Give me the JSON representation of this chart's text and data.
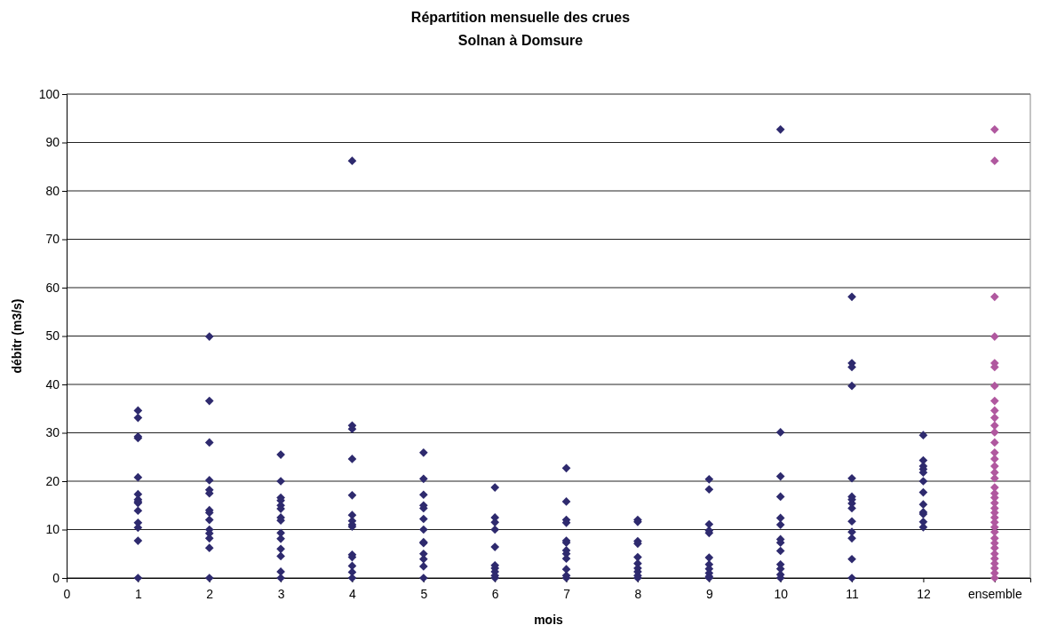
{
  "chart_data": {
    "type": "scatter",
    "title": "Répartition mensuelle des crues",
    "subtitle": "Solnan à Domsure",
    "xlabel": "mois",
    "ylabel": "débitr (m3/s)",
    "xlim": [
      0,
      13.5
    ],
    "xticks": [
      0,
      1,
      2,
      3,
      4,
      5,
      6,
      7,
      8,
      9,
      10,
      11,
      12,
      {
        "value": 13,
        "label": "ensemble"
      }
    ],
    "ylim": [
      0,
      100
    ],
    "yticks": [
      0,
      10,
      20,
      30,
      40,
      50,
      60,
      70,
      80,
      90,
      100
    ],
    "grid": "y",
    "marker": "diamond",
    "series": [
      {
        "color": "#2e2a6e",
        "x": [
          1,
          1,
          1,
          1,
          1,
          1,
          1,
          1,
          1,
          1,
          1,
          1,
          1,
          1,
          2,
          2,
          2,
          2,
          2,
          2,
          2,
          2,
          2,
          2,
          2,
          2,
          2,
          2,
          3,
          3,
          3,
          3,
          3,
          3,
          3,
          3,
          3,
          3,
          3,
          3,
          3,
          3,
          4,
          4,
          4,
          4,
          4,
          4,
          4,
          4,
          4,
          4,
          4,
          4,
          4,
          4,
          5,
          5,
          5,
          5,
          5,
          5,
          5,
          5,
          5,
          5,
          5,
          5,
          5,
          6,
          6,
          6,
          6,
          6,
          6,
          6,
          6,
          6,
          6,
          7,
          7,
          7,
          7,
          7,
          7,
          7,
          7,
          7,
          7,
          7,
          7,
          8,
          8,
          8,
          8,
          8,
          8,
          8,
          8,
          8,
          8,
          9,
          9,
          9,
          9,
          9,
          9,
          9,
          9,
          9,
          9,
          9,
          10,
          10,
          10,
          10,
          10,
          10,
          10,
          10,
          10,
          10,
          10,
          10,
          10,
          11,
          11,
          11,
          11,
          11,
          11,
          11,
          11,
          11,
          11,
          11,
          11,
          11,
          11,
          12,
          12,
          12,
          12,
          12,
          12,
          12,
          12,
          12,
          12,
          12,
          12
        ],
        "values": [
          34.6,
          33.1,
          29.2,
          28.9,
          20.8,
          17.3,
          16.2,
          15.8,
          15.5,
          13.9,
          11.4,
          10.4,
          7.7,
          0,
          49.9,
          36.6,
          28.0,
          20.2,
          18.2,
          17.5,
          14.0,
          13.5,
          12.0,
          10.0,
          9.2,
          8.2,
          6.2,
          0,
          25.5,
          20.0,
          16.6,
          16.0,
          15.0,
          14.3,
          12.5,
          11.9,
          9.3,
          8.1,
          6.0,
          4.5,
          1.3,
          0,
          86.2,
          31.5,
          30.8,
          24.6,
          17.1,
          13.0,
          11.8,
          11.0,
          10.6,
          4.8,
          4.3,
          2.5,
          1.2,
          0,
          25.9,
          20.5,
          17.2,
          15.0,
          14.4,
          12.2,
          10.0,
          7.4,
          7.2,
          5.0,
          3.9,
          2.4,
          0,
          18.7,
          12.5,
          11.5,
          10.0,
          6.4,
          2.6,
          2.0,
          1.3,
          0.5,
          0,
          22.7,
          15.8,
          12.0,
          11.4,
          7.7,
          7.3,
          5.7,
          5.0,
          4.0,
          1.8,
          0.5,
          0,
          12.0,
          11.6,
          7.6,
          7.1,
          4.3,
          3.0,
          2.0,
          1.3,
          0.5,
          0,
          20.4,
          18.3,
          11.1,
          9.8,
          9.3,
          4.2,
          2.8,
          1.9,
          1.0,
          0.3,
          0,
          92.7,
          30.1,
          21.0,
          16.8,
          12.4,
          11.0,
          8.0,
          7.3,
          5.6,
          2.8,
          1.9,
          0.7,
          0,
          58.1,
          44.4,
          43.6,
          39.7,
          20.6,
          16.8,
          16.2,
          15.4,
          14.4,
          11.7,
          9.5,
          8.2,
          3.9,
          0,
          29.5,
          24.3,
          23.1,
          22.5,
          21.8,
          20.0,
          17.7,
          15.2,
          13.6,
          13.2,
          11.6,
          10.5
        ]
      },
      {
        "color": "#b0589f",
        "x": [
          13,
          13,
          13,
          13,
          13,
          13,
          13,
          13,
          13,
          13,
          13,
          13,
          13,
          13,
          13,
          13,
          13,
          13,
          13,
          13,
          13,
          13,
          13,
          13,
          13,
          13,
          13,
          13,
          13,
          13,
          13,
          13,
          13,
          13,
          13,
          13,
          13
        ],
        "values": [
          92.7,
          86.2,
          58.1,
          49.9,
          44.4,
          43.6,
          39.7,
          36.6,
          34.6,
          33.1,
          31.5,
          30.1,
          28.0,
          25.9,
          24.6,
          23.1,
          21.8,
          20.6,
          18.7,
          17.5,
          16.6,
          15.5,
          14.4,
          13.5,
          12.5,
          11.5,
          10.5,
          9.5,
          8.2,
          7.2,
          6.2,
          5.0,
          4.0,
          3.0,
          2.0,
          1.0,
          0
        ]
      }
    ]
  }
}
